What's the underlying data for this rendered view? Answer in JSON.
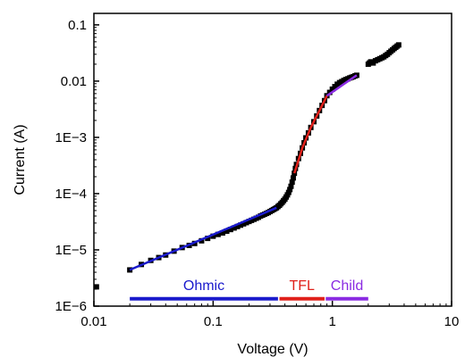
{
  "chart_data": {
    "type": "scatter",
    "title": "",
    "xlabel": "Voltage (V)",
    "ylabel": "Current (A)",
    "x_scale": "log",
    "y_scale": "log",
    "xlim": [
      0.01,
      10
    ],
    "ylim": [
      1e-06,
      0.16
    ],
    "grid": false,
    "x_ticks": [
      {
        "value": 0.01,
        "label": "0.01"
      },
      {
        "value": 0.1,
        "label": "0.1"
      },
      {
        "value": 1,
        "label": "1"
      },
      {
        "value": 10,
        "label": "10"
      }
    ],
    "y_ticks": [
      {
        "value": 1e-06,
        "label": "1E−6"
      },
      {
        "value": 1e-05,
        "label": "1E−5"
      },
      {
        "value": 0.0001,
        "label": "1E−4"
      },
      {
        "value": 0.001,
        "label": "1E−3"
      },
      {
        "value": 0.01,
        "label": "0.01"
      },
      {
        "value": 0.1,
        "label": "0.1"
      }
    ],
    "data_points": [
      [
        0.0105,
        2.2e-06
      ],
      [
        0.02,
        4.4e-06
      ],
      [
        0.025,
        5.5e-06
      ],
      [
        0.03,
        6.5e-06
      ],
      [
        0.035,
        7.3e-06
      ],
      [
        0.04,
        8.1e-06
      ],
      [
        0.047,
        9.5e-06
      ],
      [
        0.055,
        1.1e-05
      ],
      [
        0.063,
        1.2e-05
      ],
      [
        0.07,
        1.3e-05
      ],
      [
        0.08,
        1.45e-05
      ],
      [
        0.09,
        1.6e-05
      ],
      [
        0.1,
        1.75e-05
      ],
      [
        0.11,
        1.88e-05
      ],
      [
        0.12,
        2e-05
      ],
      [
        0.13,
        2.15e-05
      ],
      [
        0.14,
        2.3e-05
      ],
      [
        0.15,
        2.45e-05
      ],
      [
        0.16,
        2.6e-05
      ],
      [
        0.17,
        2.75e-05
      ],
      [
        0.18,
        2.9e-05
      ],
      [
        0.19,
        3.05e-05
      ],
      [
        0.2,
        3.2e-05
      ],
      [
        0.21,
        3.35e-05
      ],
      [
        0.22,
        3.5e-05
      ],
      [
        0.23,
        3.65e-05
      ],
      [
        0.24,
        3.8e-05
      ],
      [
        0.25,
        4e-05
      ],
      [
        0.26,
        4.15e-05
      ],
      [
        0.27,
        4.3e-05
      ],
      [
        0.28,
        4.45e-05
      ],
      [
        0.29,
        4.6e-05
      ],
      [
        0.3,
        4.8e-05
      ],
      [
        0.31,
        5e-05
      ],
      [
        0.32,
        5.2e-05
      ],
      [
        0.33,
        5.4e-05
      ],
      [
        0.34,
        5.6e-05
      ],
      [
        0.35,
        5.9e-05
      ],
      [
        0.36,
        6.2e-05
      ],
      [
        0.37,
        6.6e-05
      ],
      [
        0.38,
        7e-05
      ],
      [
        0.39,
        7.5e-05
      ],
      [
        0.4,
        8e-05
      ],
      [
        0.41,
        8.7e-05
      ],
      [
        0.42,
        9.5e-05
      ],
      [
        0.43,
        0.000105
      ],
      [
        0.44,
        0.000118
      ],
      [
        0.45,
        0.000135
      ],
      [
        0.46,
        0.00016
      ],
      [
        0.47,
        0.00019
      ],
      [
        0.48,
        0.00023
      ],
      [
        0.49,
        0.00028
      ],
      [
        0.5,
        0.00033
      ],
      [
        0.52,
        0.00042
      ],
      [
        0.54,
        0.00052
      ],
      [
        0.56,
        0.00065
      ],
      [
        0.58,
        0.0008
      ],
      [
        0.6,
        0.00098
      ],
      [
        0.63,
        0.0012
      ],
      [
        0.66,
        0.0015
      ],
      [
        0.7,
        0.0019
      ],
      [
        0.74,
        0.0024
      ],
      [
        0.78,
        0.003
      ],
      [
        0.82,
        0.0037
      ],
      [
        0.86,
        0.0045
      ],
      [
        0.9,
        0.0055
      ],
      [
        0.95,
        0.0063
      ],
      [
        1.0,
        0.0072
      ],
      [
        1.05,
        0.008
      ],
      [
        1.1,
        0.0088
      ],
      [
        1.15,
        0.0094
      ],
      [
        1.2,
        0.0098
      ],
      [
        1.25,
        0.0103
      ],
      [
        1.3,
        0.0107
      ],
      [
        1.35,
        0.011
      ],
      [
        1.4,
        0.0114
      ],
      [
        1.45,
        0.0117
      ],
      [
        1.5,
        0.012
      ],
      [
        1.55,
        0.0124
      ],
      [
        1.6,
        0.0127
      ],
      [
        2.0,
        0.02
      ],
      [
        2.05,
        0.021
      ],
      [
        2.1,
        0.022
      ],
      [
        2.2,
        0.021
      ],
      [
        2.3,
        0.023
      ],
      [
        2.4,
        0.024
      ],
      [
        2.5,
        0.025
      ],
      [
        2.6,
        0.026
      ],
      [
        2.7,
        0.027
      ],
      [
        2.8,
        0.0285
      ],
      [
        2.9,
        0.03
      ],
      [
        3.0,
        0.032
      ],
      [
        3.1,
        0.034
      ],
      [
        3.2,
        0.036
      ],
      [
        3.3,
        0.038
      ],
      [
        3.4,
        0.04
      ],
      [
        3.5,
        0.042
      ],
      [
        3.6,
        0.044
      ]
    ],
    "fits": [
      {
        "name": "Ohmic",
        "color": "#1a1acc",
        "points": [
          [
            0.02,
            4.4e-06
          ],
          [
            0.34,
            5.6e-05
          ]
        ]
      },
      {
        "name": "TFL",
        "color": "#e0201a",
        "points": [
          [
            0.48,
            0.00023
          ],
          [
            0.56,
            0.00065
          ],
          [
            0.66,
            0.0015
          ],
          [
            0.78,
            0.003
          ],
          [
            0.9,
            0.0055
          ]
        ]
      },
      {
        "name": "Child",
        "color": "#8a2be2",
        "points": [
          [
            0.9,
            0.0055
          ],
          [
            1.6,
            0.0127
          ]
        ]
      }
    ],
    "regions": [
      {
        "label": "Ohmic",
        "color": "#1a1acc",
        "x_range": [
          0.02,
          0.35
        ]
      },
      {
        "label": "TFL",
        "color": "#e0201a",
        "x_range": [
          0.36,
          0.86
        ]
      },
      {
        "label": "Child",
        "color": "#8a2be2",
        "x_range": [
          0.88,
          2.0
        ]
      }
    ]
  }
}
